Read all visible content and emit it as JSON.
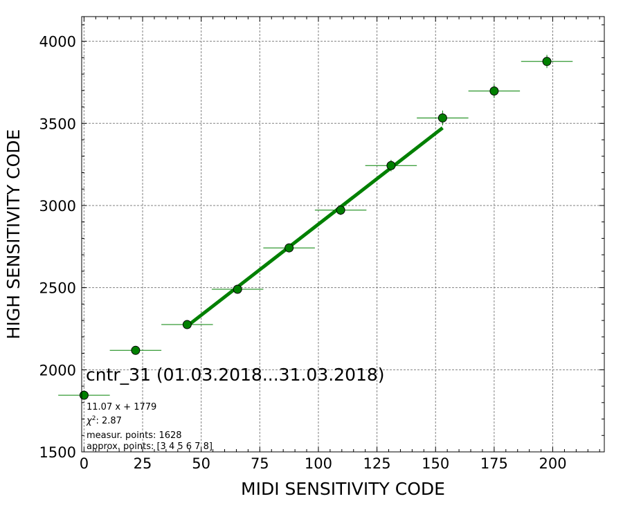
{
  "chart_data": {
    "type": "scatter",
    "title": "",
    "xlabel": "MIDI SENSITIVITY CODE",
    "ylabel": "HIGH SENSITIVITY CODE",
    "xlim": [
      -1,
      222
    ],
    "ylim": [
      1500,
      4150
    ],
    "xticks": [
      0,
      25,
      50,
      75,
      100,
      125,
      150,
      175,
      200
    ],
    "yticks": [
      1500,
      2000,
      2500,
      3000,
      3500,
      4000
    ],
    "grid": true,
    "colors": {
      "marker": "#008000",
      "fit": "#008000",
      "grid": "#808080"
    },
    "annotation": "cntr_31 (01.03.2018...31.03.2018)",
    "info_lines": [
      {
        "text": "11.07 x + 1779",
        "math": false
      },
      {
        "prefix": "χ",
        "sup": "2",
        "rest": ": 2.87",
        "math": true
      },
      {
        "text": "measur. points: 1628",
        "math": false
      },
      {
        "text": "approx. points: [3 4 5 6 7 8]",
        "math": false
      }
    ],
    "points": [
      {
        "x": 0,
        "y": 1845,
        "xerr": 11,
        "yerr": 12
      },
      {
        "x": 22,
        "y": 2118,
        "xerr": 11,
        "yerr": 12
      },
      {
        "x": 44,
        "y": 2275,
        "xerr": 11,
        "yerr": 15
      },
      {
        "x": 65.5,
        "y": 2490,
        "xerr": 11,
        "yerr": 18
      },
      {
        "x": 87.5,
        "y": 2742,
        "xerr": 11,
        "yerr": 22
      },
      {
        "x": 109.5,
        "y": 2972,
        "xerr": 11,
        "yerr": 30
      },
      {
        "x": 131,
        "y": 3243,
        "xerr": 11,
        "yerr": 35
      },
      {
        "x": 153,
        "y": 3533,
        "xerr": 11,
        "yerr": 45
      },
      {
        "x": 175,
        "y": 3697,
        "xerr": 11,
        "yerr": 40
      },
      {
        "x": 197.5,
        "y": 3877,
        "xerr": 11,
        "yerr": 40
      }
    ],
    "fit": {
      "slope": 11.07,
      "intercept": 1779,
      "x_range": [
        44,
        153
      ]
    }
  }
}
